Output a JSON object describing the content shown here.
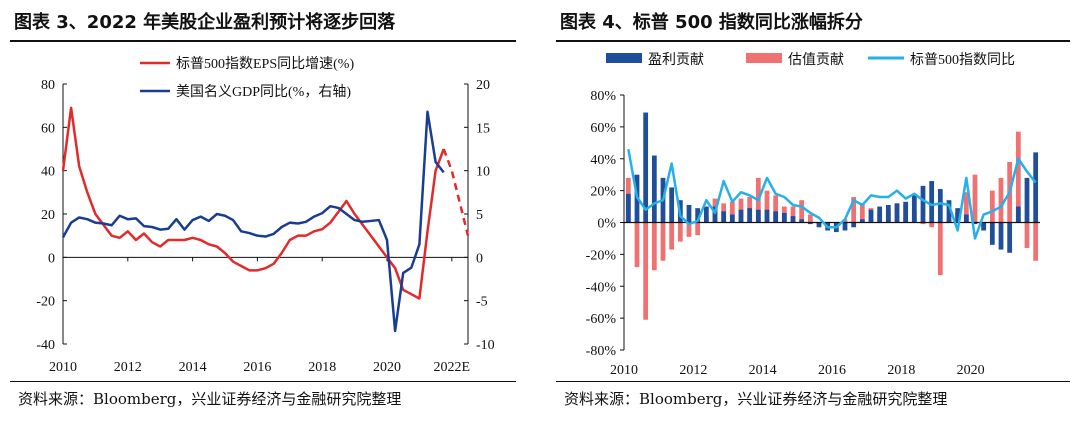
{
  "left": {
    "title": "图表 3、2022 年美股企业盈利预计将逐步回落",
    "source": "资料来源：Bloomberg，兴业证券经济与金融研究院整理"
  },
  "right": {
    "title": "图表 4、标普 500 指数同比涨幅拆分",
    "source": "资料来源：Bloomberg，兴业证券经济与金融研究院整理"
  },
  "chart_data": [
    {
      "type": "line",
      "title": "图表 3、2022 年美股企业盈利预计将逐步回落",
      "x_ticks": [
        "2010",
        "2012",
        "2014",
        "2016",
        "2018",
        "2020",
        "2022E"
      ],
      "x_tick_values": [
        2010,
        2012,
        2014,
        2016,
        2018,
        2020,
        2022
      ],
      "xlim": [
        2010,
        2022.5
      ],
      "ylim_left": [
        -40,
        80
      ],
      "y_left_ticks": [
        "-40",
        "-20",
        "0",
        "20",
        "40",
        "60",
        "80"
      ],
      "ylim_right": [
        -10,
        20
      ],
      "y_right_ticks": [
        "-10",
        "-5",
        "0",
        "5",
        "10",
        "15",
        "20"
      ],
      "legend_position": "top-right",
      "series": [
        {
          "name": "标普500指数EPS同比增速(%)",
          "color": "#e32a2a",
          "axis": "left",
          "x": [
            2010.0,
            2010.25,
            2010.5,
            2010.75,
            2011.0,
            2011.25,
            2011.5,
            2011.75,
            2012.0,
            2012.25,
            2012.5,
            2012.75,
            2013.0,
            2013.25,
            2013.5,
            2013.75,
            2014.0,
            2014.25,
            2014.5,
            2014.75,
            2015.0,
            2015.25,
            2015.5,
            2015.75,
            2016.0,
            2016.25,
            2016.5,
            2016.75,
            2017.0,
            2017.25,
            2017.5,
            2017.75,
            2018.0,
            2018.25,
            2018.5,
            2018.75,
            2019.0,
            2019.25,
            2019.5,
            2019.75,
            2020.0,
            2020.25,
            2020.5,
            2020.75,
            2021.0,
            2021.25,
            2021.5,
            2021.75
          ],
          "values": [
            40,
            69,
            42,
            30,
            20,
            15,
            10,
            9,
            12,
            8,
            11,
            7,
            5,
            8,
            8,
            8,
            9,
            8,
            6,
            5,
            2,
            -2,
            -4,
            -6,
            -6,
            -5,
            -3,
            2,
            8,
            10,
            10,
            12,
            13,
            16,
            21,
            26,
            20,
            15,
            10,
            5,
            0,
            -5,
            -15,
            -17,
            -19,
            12,
            40,
            50
          ],
          "forecast": {
            "x": [
              2021.75,
              2022.0,
              2022.25,
              2022.5
            ],
            "values": [
              50,
              40,
              25,
              10
            ]
          }
        },
        {
          "name": "美国名义GDP同比(%，右轴)",
          "color": "#1a3d93",
          "axis": "right",
          "x": [
            2010.0,
            2010.25,
            2010.5,
            2010.75,
            2011.0,
            2011.25,
            2011.5,
            2011.75,
            2012.0,
            2012.25,
            2012.5,
            2012.75,
            2013.0,
            2013.25,
            2013.5,
            2013.75,
            2014.0,
            2014.25,
            2014.5,
            2014.75,
            2015.0,
            2015.25,
            2015.5,
            2015.75,
            2016.0,
            2016.25,
            2016.5,
            2016.75,
            2017.0,
            2017.25,
            2017.5,
            2017.75,
            2018.0,
            2018.25,
            2018.5,
            2018.75,
            2019.0,
            2019.25,
            2019.5,
            2019.75,
            2020.0,
            2020.25,
            2020.5,
            2020.75,
            2021.0,
            2021.25,
            2021.5,
            2021.75
          ],
          "values": [
            2.3,
            4.0,
            4.6,
            4.4,
            4.0,
            3.9,
            3.7,
            4.8,
            4.4,
            4.5,
            3.6,
            3.5,
            3.2,
            3.3,
            4.4,
            3.2,
            4.3,
            4.7,
            4.2,
            5.0,
            4.8,
            4.3,
            3.0,
            2.8,
            2.5,
            2.4,
            2.7,
            3.5,
            4.0,
            3.9,
            4.1,
            4.7,
            5.1,
            5.9,
            5.7,
            5.0,
            4.3,
            4.1,
            4.2,
            4.3,
            2.0,
            -8.5,
            -1.8,
            -1.2,
            1.5,
            16.8,
            11.0,
            9.8
          ]
        }
      ]
    },
    {
      "type": "bar",
      "title": "图表 4、标普 500 指数同比涨幅拆分",
      "x_ticks": [
        "2010",
        "2012",
        "2014",
        "2016",
        "2018",
        "2020"
      ],
      "x_tick_values": [
        2010,
        2012,
        2014,
        2016,
        2018,
        2020
      ],
      "xlim": [
        2010,
        2022
      ],
      "ylim": [
        -0.8,
        0.8
      ],
      "y_ticks": [
        "-80%",
        "-60%",
        "-40%",
        "-20%",
        "0%",
        "20%",
        "40%",
        "60%",
        "80%"
      ],
      "legend_position": "top",
      "x": [
        2010.0,
        2010.25,
        2010.5,
        2010.75,
        2011.0,
        2011.25,
        2011.5,
        2011.75,
        2012.0,
        2012.25,
        2012.5,
        2012.75,
        2013.0,
        2013.25,
        2013.5,
        2013.75,
        2014.0,
        2014.25,
        2014.5,
        2014.75,
        2015.0,
        2015.25,
        2015.5,
        2015.75,
        2016.0,
        2016.25,
        2016.5,
        2016.75,
        2017.0,
        2017.25,
        2017.5,
        2017.75,
        2018.0,
        2018.25,
        2018.5,
        2018.75,
        2019.0,
        2019.25,
        2019.5,
        2019.75,
        2020.0,
        2020.25,
        2020.5,
        2020.75,
        2021.0,
        2021.25,
        2021.5,
        2021.75
      ],
      "series": [
        {
          "name": "盈利贡献",
          "color": "#1f4e9a",
          "kind": "bar",
          "values": [
            0.18,
            0.3,
            0.69,
            0.42,
            0.28,
            0.22,
            0.14,
            0.11,
            0.09,
            0.1,
            0.1,
            0.07,
            0.05,
            0.08,
            0.09,
            0.08,
            0.08,
            0.07,
            0.06,
            0.04,
            0.02,
            -0.01,
            -0.03,
            -0.05,
            -0.06,
            -0.05,
            -0.03,
            0.02,
            0.08,
            0.1,
            0.11,
            0.12,
            0.13,
            0.18,
            0.23,
            0.26,
            0.21,
            0.14,
            0.09,
            0.05,
            -0.01,
            -0.05,
            -0.14,
            -0.17,
            -0.19,
            0.1,
            0.28,
            0.44
          ]
        },
        {
          "name": "估值贡献",
          "color": "#f07171",
          "kind": "bar",
          "values": [
            0.28,
            -0.28,
            -0.61,
            -0.3,
            -0.24,
            -0.17,
            -0.12,
            -0.09,
            -0.08,
            0.04,
            0.15,
            0.12,
            0.13,
            0.15,
            0.16,
            0.28,
            0.2,
            0.17,
            0.1,
            0.1,
            0.14,
            0.05,
            -0.01,
            -0.02,
            -0.02,
            0.02,
            0.16,
            0.12,
            0.09,
            0.06,
            0.07,
            0.12,
            0.11,
            0.06,
            -0.01,
            -0.03,
            -0.33,
            0.02,
            0.06,
            0.19,
            0.3,
            -0.05,
            0.2,
            0.28,
            0.38,
            0.57,
            -0.16,
            -0.24
          ]
        },
        {
          "name": "标普500指数同比",
          "color": "#26b0ea",
          "kind": "line",
          "values": [
            0.46,
            0.16,
            0.08,
            0.12,
            0.14,
            0.37,
            0.04,
            -0.01,
            0.01,
            0.14,
            0.06,
            0.26,
            0.13,
            0.19,
            0.17,
            0.14,
            0.28,
            0.18,
            0.16,
            0.11,
            0.1,
            0.06,
            0.03,
            -0.03,
            -0.03,
            0.02,
            0.14,
            0.11,
            0.17,
            0.16,
            0.16,
            0.2,
            0.15,
            0.18,
            0.14,
            0.11,
            0.12,
            0.11,
            -0.05,
            0.28,
            -0.1,
            0.05,
            0.07,
            0.1,
            0.19,
            0.4,
            0.32,
            0.25
          ]
        }
      ]
    }
  ]
}
